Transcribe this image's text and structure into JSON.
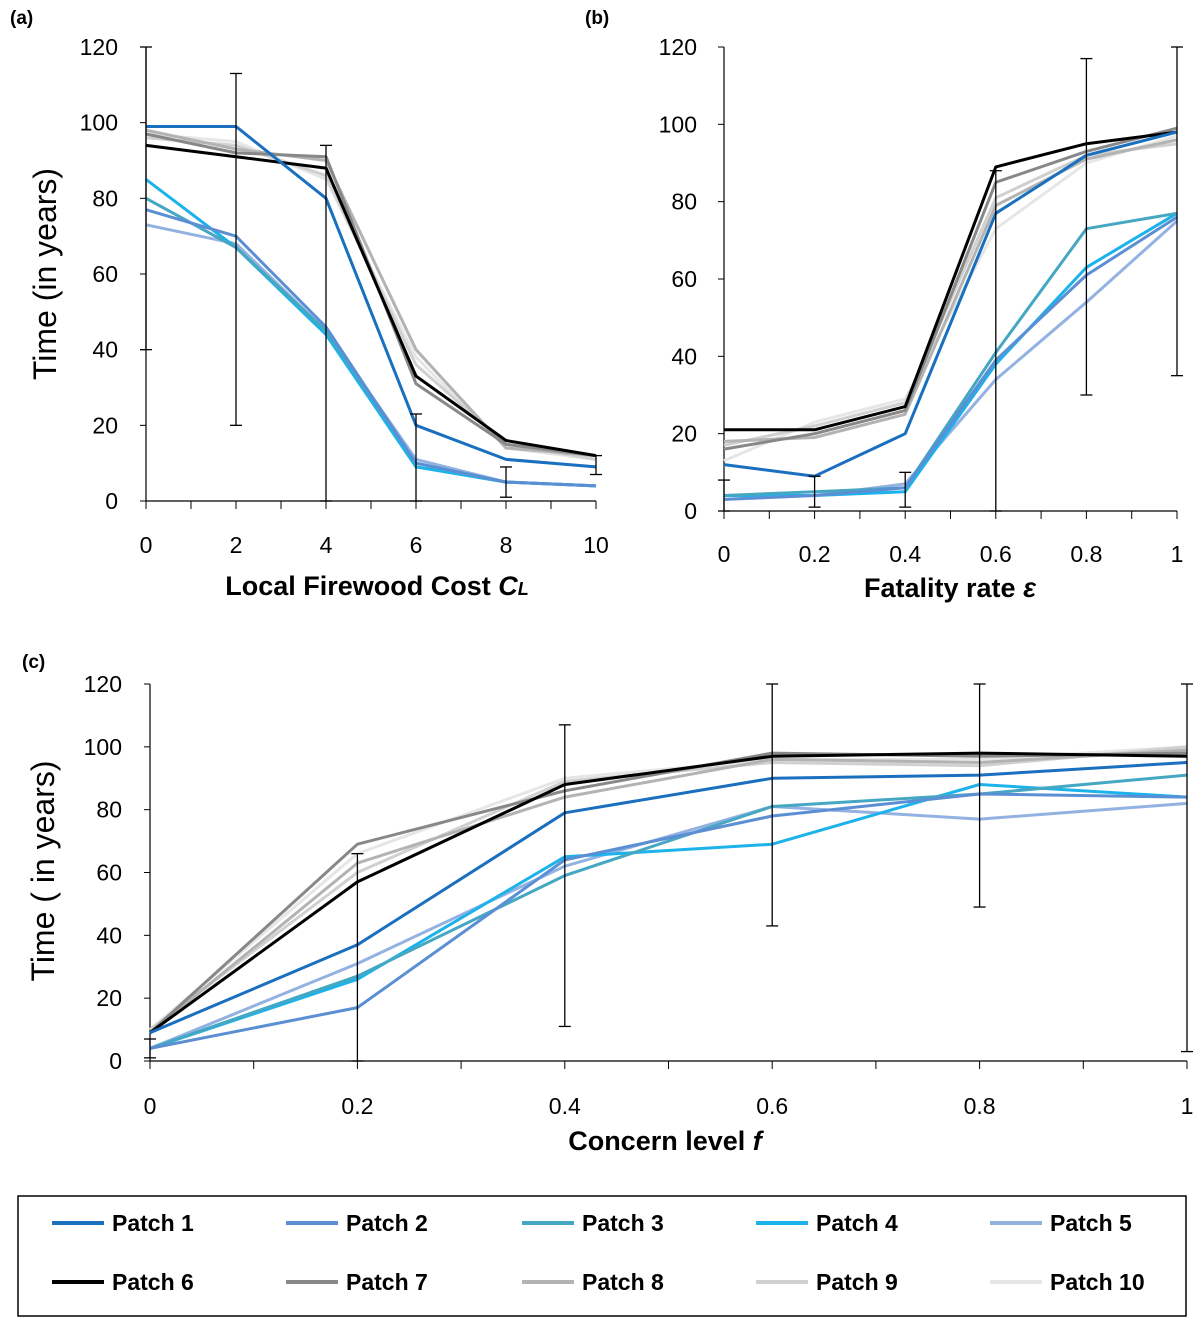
{
  "legend": [
    {
      "name": "Patch 1",
      "color": "#1a6fbf"
    },
    {
      "name": "Patch 2",
      "color": "#5b8fd4"
    },
    {
      "name": "Patch 3",
      "color": "#45a7c2"
    },
    {
      "name": "Patch 4",
      "color": "#1cb2ea"
    },
    {
      "name": "Patch 5",
      "color": "#93b2e2"
    },
    {
      "name": "Patch 6",
      "color": "#000000"
    },
    {
      "name": "Patch 7",
      "color": "#888888"
    },
    {
      "name": "Patch 8",
      "color": "#b3b3b3"
    },
    {
      "name": "Patch 9",
      "color": "#d0d0d0"
    },
    {
      "name": "Patch 10",
      "color": "#e6e6e6"
    }
  ],
  "chart_data": [
    {
      "panel": "(a)",
      "type": "line",
      "xlabel": "Local Firewood Cost ",
      "xlabel_symbol": "C",
      "xlabel_sub": "L",
      "ylabel": "Time (in years)",
      "xlim": [
        0,
        10
      ],
      "ylim": [
        0,
        120
      ],
      "x_ticks": [
        "0",
        "2",
        "4",
        "6",
        "8",
        "10"
      ],
      "y_ticks": [
        "0",
        "20",
        "40",
        "60",
        "80",
        "100",
        "120"
      ],
      "x": [
        0,
        2,
        4,
        6,
        8,
        10
      ],
      "series": [
        {
          "name": "Patch 1",
          "values": [
            99,
            99,
            80,
            20,
            11,
            9
          ]
        },
        {
          "name": "Patch 2",
          "values": [
            77,
            70,
            46,
            10,
            5,
            4
          ]
        },
        {
          "name": "Patch 3",
          "values": [
            80,
            67,
            45,
            10,
            5,
            4
          ]
        },
        {
          "name": "Patch 4",
          "values": [
            85,
            67,
            44,
            9,
            5,
            4
          ]
        },
        {
          "name": "Patch 5",
          "values": [
            73,
            68,
            45,
            11,
            5,
            4
          ]
        },
        {
          "name": "Patch 6",
          "values": [
            94,
            91,
            88,
            33,
            16,
            12
          ]
        },
        {
          "name": "Patch 7",
          "values": [
            97,
            92,
            91,
            31,
            15,
            12
          ]
        },
        {
          "name": "Patch 8",
          "values": [
            98,
            93,
            90,
            40,
            14,
            12
          ]
        },
        {
          "name": "Patch 9",
          "values": [
            96,
            94,
            86,
            36,
            15,
            11
          ]
        },
        {
          "name": "Patch 10",
          "values": [
            97,
            95,
            85,
            38,
            14,
            11
          ]
        }
      ],
      "error_bars": [
        {
          "x": 0,
          "low": 40,
          "high": 120
        },
        {
          "x": 2,
          "low": 20,
          "high": 113
        },
        {
          "x": 4,
          "low": 0,
          "high": 94
        },
        {
          "x": 6,
          "low": 0,
          "high": 23
        },
        {
          "x": 8,
          "low": 1,
          "high": 9
        },
        {
          "x": 10,
          "low": 7,
          "high": 12
        }
      ]
    },
    {
      "panel": "(b)",
      "type": "line",
      "xlabel": "Fatality rate ",
      "xlabel_symbol": "ε",
      "xlabel_sub": "",
      "ylabel": "",
      "xlim": [
        0,
        1
      ],
      "ylim": [
        0,
        120
      ],
      "x_ticks": [
        "0",
        "0.2",
        "0.4",
        "0.6",
        "0.8",
        "1"
      ],
      "y_ticks": [
        "0",
        "20",
        "40",
        "60",
        "80",
        "100",
        "120"
      ],
      "x": [
        0,
        0.2,
        0.4,
        0.6,
        0.8,
        1
      ],
      "series": [
        {
          "name": "Patch 1",
          "values": [
            12,
            9,
            20,
            77,
            92,
            98
          ]
        },
        {
          "name": "Patch 2",
          "values": [
            3,
            4,
            6,
            39,
            61,
            76
          ]
        },
        {
          "name": "Patch 3",
          "values": [
            4,
            5,
            6,
            41,
            73,
            77
          ]
        },
        {
          "name": "Patch 4",
          "values": [
            4,
            4,
            5,
            38,
            63,
            77
          ]
        },
        {
          "name": "Patch 5",
          "values": [
            3,
            4,
            7,
            34,
            54,
            75
          ]
        },
        {
          "name": "Patch 6",
          "values": [
            21,
            21,
            27,
            89,
            95,
            98
          ]
        },
        {
          "name": "Patch 7",
          "values": [
            16,
            20,
            26,
            85,
            93,
            99
          ]
        },
        {
          "name": "Patch 8",
          "values": [
            18,
            19,
            25,
            79,
            91,
            96
          ]
        },
        {
          "name": "Patch 9",
          "values": [
            17,
            22,
            28,
            81,
            92,
            95
          ]
        },
        {
          "name": "Patch 10",
          "values": [
            13,
            23,
            29,
            73,
            90,
            97
          ]
        }
      ],
      "error_bars": [
        {
          "x": 0,
          "low": 0,
          "high": 8
        },
        {
          "x": 0.2,
          "low": 1,
          "high": 9
        },
        {
          "x": 0.4,
          "low": 1,
          "high": 10
        },
        {
          "x": 0.6,
          "low": 0,
          "high": 88
        },
        {
          "x": 0.8,
          "low": 30,
          "high": 117
        },
        {
          "x": 1,
          "low": 35,
          "high": 120
        }
      ]
    },
    {
      "panel": "(c)",
      "type": "line",
      "xlabel": "Concern level ",
      "xlabel_symbol": "f",
      "xlabel_sub": "",
      "ylabel": "Time ( in years)",
      "xlim": [
        0,
        1
      ],
      "ylim": [
        0,
        120
      ],
      "x_ticks": [
        "0",
        "0.2",
        "0.4",
        "0.6",
        "0.8",
        "1"
      ],
      "y_ticks": [
        "0",
        "20",
        "40",
        "60",
        "80",
        "100",
        "120"
      ],
      "x": [
        0,
        0.2,
        0.4,
        0.6,
        0.8,
        1
      ],
      "series": [
        {
          "name": "Patch 1",
          "values": [
            9,
            37,
            79,
            90,
            91,
            95
          ]
        },
        {
          "name": "Patch 2",
          "values": [
            4,
            17,
            64,
            78,
            85,
            84
          ]
        },
        {
          "name": "Patch 3",
          "values": [
            4,
            27,
            59,
            81,
            85,
            91
          ]
        },
        {
          "name": "Patch 4",
          "values": [
            4,
            26,
            65,
            69,
            88,
            84
          ]
        },
        {
          "name": "Patch 5",
          "values": [
            4,
            31,
            62,
            81,
            77,
            82
          ]
        },
        {
          "name": "Patch 6",
          "values": [
            9,
            57,
            88,
            97,
            98,
            97
          ]
        },
        {
          "name": "Patch 7",
          "values": [
            9,
            69,
            86,
            98,
            97,
            98
          ]
        },
        {
          "name": "Patch 8",
          "values": [
            9,
            63,
            84,
            96,
            95,
            99
          ]
        },
        {
          "name": "Patch 9",
          "values": [
            10,
            60,
            89,
            95,
            94,
            100
          ]
        },
        {
          "name": "Patch 10",
          "values": [
            10,
            66,
            90,
            96,
            96,
            100
          ]
        }
      ],
      "error_bars": [
        {
          "x": 0,
          "low": 1,
          "high": 7
        },
        {
          "x": 0.2,
          "low": 0,
          "high": 66
        },
        {
          "x": 0.4,
          "low": 11,
          "high": 107
        },
        {
          "x": 0.6,
          "low": 43,
          "high": 120
        },
        {
          "x": 0.8,
          "low": 49,
          "high": 120
        },
        {
          "x": 1,
          "low": 3,
          "high": 120
        }
      ]
    }
  ]
}
